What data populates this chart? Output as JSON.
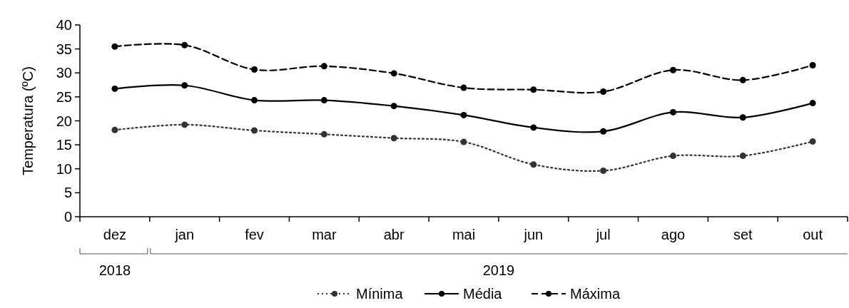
{
  "chart_data": {
    "type": "line",
    "ylabel": "Temperatura (ºC)",
    "categories": [
      "dez",
      "jan",
      "fev",
      "mar",
      "abr",
      "mai",
      "jun",
      "jul",
      "ago",
      "set",
      "out"
    ],
    "series": [
      {
        "name": "Mínima",
        "color": "#333333",
        "line_style": "dotted",
        "values": [
          18.1,
          19.2,
          18.0,
          17.2,
          16.4,
          15.6,
          10.9,
          9.6,
          12.7,
          12.7,
          15.7
        ]
      },
      {
        "name": "Média",
        "color": "#000000",
        "line_style": "solid",
        "values": [
          26.7,
          27.4,
          24.3,
          24.3,
          23.1,
          21.2,
          18.6,
          17.8,
          21.8,
          20.7,
          23.7
        ]
      },
      {
        "name": "Máxima",
        "color": "#000000",
        "line_style": "dashed",
        "values": [
          35.5,
          35.8,
          30.7,
          31.4,
          29.9,
          26.9,
          26.5,
          26.1,
          30.6,
          28.5,
          31.6
        ]
      }
    ],
    "ylim": [
      0,
      40
    ],
    "yticks": [
      0,
      5,
      10,
      15,
      20,
      25,
      30,
      35,
      40
    ],
    "marker": "circle",
    "legend": "bottom",
    "grid": false,
    "annotations": [
      "2018",
      "2019"
    ]
  }
}
